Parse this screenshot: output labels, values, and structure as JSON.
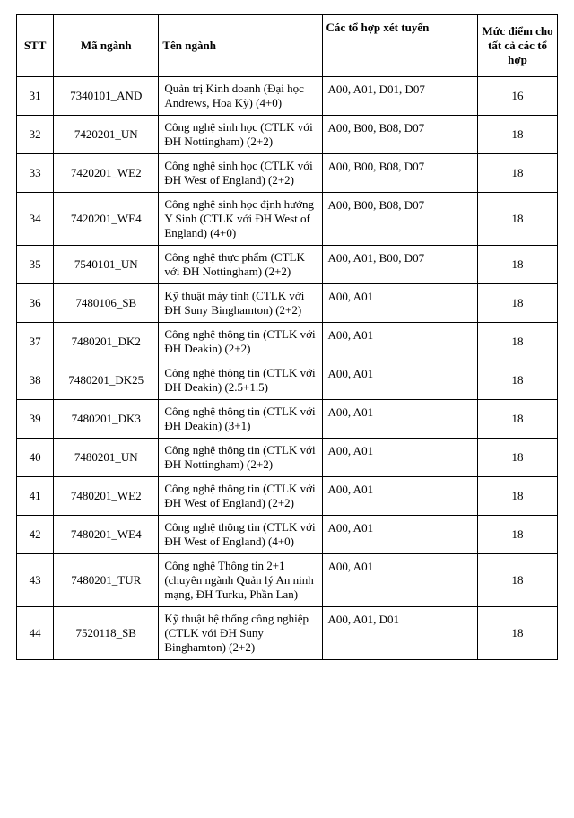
{
  "table": {
    "headers": {
      "stt": "STT",
      "code": "Mã ngành",
      "name": "Tên ngành",
      "combo": "Các tổ hợp xét tuyển",
      "score": "Mức điểm cho tất cả các tổ hợp"
    },
    "rows": [
      {
        "stt": "31",
        "code": "7340101_AND",
        "name": "Quản trị Kinh doanh (Đại học Andrews, Hoa Kỳ) (4+0)",
        "combo": "A00, A01, D01, D07",
        "score": "16"
      },
      {
        "stt": "32",
        "code": "7420201_UN",
        "name": "Công nghệ sinh học (CTLK với ĐH Nottingham) (2+2)",
        "combo": "A00, B00, B08, D07",
        "score": "18"
      },
      {
        "stt": "33",
        "code": "7420201_WE2",
        "name": "Công nghệ sinh học (CTLK với ĐH West of England) (2+2)",
        "combo": "A00, B00, B08, D07",
        "score": "18"
      },
      {
        "stt": "34",
        "code": "7420201_WE4",
        "name": "Công nghệ sinh học định hướng Y Sinh (CTLK với ĐH West of England) (4+0)",
        "combo": "A00, B00, B08, D07",
        "score": "18"
      },
      {
        "stt": "35",
        "code": "7540101_UN",
        "name": "Công nghệ thực phẩm (CTLK với ĐH Nottingham) (2+2)",
        "combo": "A00, A01, B00, D07",
        "score": "18"
      },
      {
        "stt": "36",
        "code": "7480106_SB",
        "name": "Kỹ thuật máy tính (CTLK với ĐH Suny Binghamton) (2+2)",
        "combo": "A00, A01",
        "score": "18"
      },
      {
        "stt": "37",
        "code": "7480201_DK2",
        "name": "Công nghệ thông tin (CTLK với ĐH Deakin) (2+2)",
        "combo": "A00, A01",
        "score": "18"
      },
      {
        "stt": "38",
        "code": "7480201_DK25",
        "name": "Công nghệ thông tin (CTLK với ĐH Deakin) (2.5+1.5)",
        "combo": "A00, A01",
        "score": "18"
      },
      {
        "stt": "39",
        "code": "7480201_DK3",
        "name": "Công nghệ thông tin (CTLK với ĐH Deakin) (3+1)",
        "combo": "A00, A01",
        "score": "18"
      },
      {
        "stt": "40",
        "code": "7480201_UN",
        "name": "Công nghệ thông tin (CTLK với ĐH Nottingham) (2+2)",
        "combo": "A00, A01",
        "score": "18"
      },
      {
        "stt": "41",
        "code": "7480201_WE2",
        "name": "Công nghệ thông tin (CTLK với ĐH West of England) (2+2)",
        "combo": "A00, A01",
        "score": "18"
      },
      {
        "stt": "42",
        "code": "7480201_WE4",
        "name": "Công nghệ thông tin (CTLK với ĐH West of England) (4+0)",
        "combo": "A00, A01",
        "score": "18"
      },
      {
        "stt": "43",
        "code": "7480201_TUR",
        "name": "Công nghệ Thông tin 2+1 (chuyên ngành Quản lý An ninh mạng, ĐH Turku, Phần Lan)",
        "combo": "A00, A01",
        "score": "18"
      },
      {
        "stt": "44",
        "code": "7520118_SB",
        "name": "Kỹ thuật hệ thống công nghiệp (CTLK với ĐH Suny Binghamton) (2+2)",
        "combo": "A00, A01, D01",
        "score": "18"
      }
    ],
    "columns": {
      "stt_width": 38,
      "code_width": 108,
      "name_width": 168,
      "combo_width": 160,
      "score_width": 82
    },
    "style": {
      "border_color": "#000000",
      "font_family": "Times New Roman",
      "font_size_pt": 10,
      "header_fontweight": "bold",
      "background": "#ffffff",
      "text_color": "#000000"
    }
  }
}
